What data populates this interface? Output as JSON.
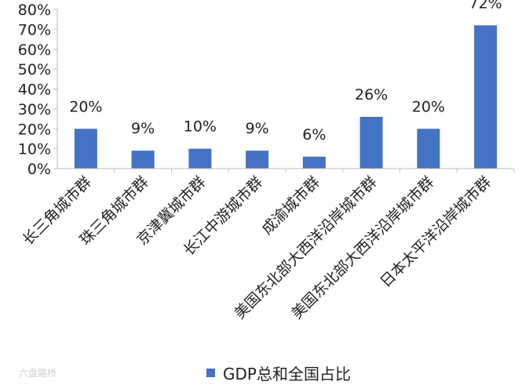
{
  "chart_data": {
    "type": "bar",
    "categories": [
      "长三角城市群",
      "珠三角城市群",
      "京津冀城市群",
      "长江中游城市群",
      "成渝城市群",
      "美国东北部大西洋沿岸城市群",
      "美国东北部大西洋沿岸城市群",
      "日本太平洋沿岸城市群"
    ],
    "series": [
      {
        "name": "GDP总和全国占比",
        "values": [
          20,
          9,
          10,
          9,
          6,
          26,
          20,
          72
        ],
        "color": "#4472C4"
      }
    ],
    "data_labels": [
      "20%",
      "9%",
      "10%",
      "9%",
      "6%",
      "26%",
      "20%",
      "72%"
    ],
    "yticks": [
      "0%",
      "10%",
      "20%",
      "30%",
      "40%",
      "50%",
      "60%",
      "70%",
      "80%"
    ],
    "ylim": [
      0,
      80
    ],
    "grid": false,
    "legend_position": "bottom"
  },
  "watermark": "六盘路桥"
}
